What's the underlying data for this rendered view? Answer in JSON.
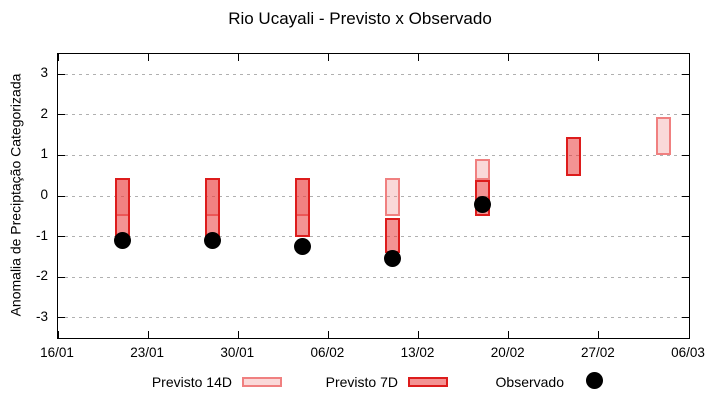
{
  "chart_data": {
    "type": "range-bar+scatter",
    "title": "Rio Ucayali - Previsto x Observado",
    "ylabel": "Anomalia de Preciptação Categorizada",
    "ylim": [
      -3.5,
      3.5
    ],
    "y_ticks": [
      3,
      2,
      1,
      0,
      -1,
      -2,
      -3
    ],
    "x_ticks": [
      "16/01",
      "23/01",
      "30/01",
      "06/02",
      "13/02",
      "20/02",
      "27/02",
      "06/03"
    ],
    "x_tick_interval_days": 7,
    "x_span_days": 49,
    "grid": "horizontal-dashed",
    "grid_color": "#b0b0b0",
    "legend_position": "bottom-outside",
    "series": [
      {
        "name": "Previsto 14D",
        "type": "range-bar",
        "fill": "rgba(240,128,128,0.30)",
        "border": "#f08080",
        "points": [
          {
            "date": "21/01",
            "day": 5,
            "low": -0.5,
            "high": 0.45
          },
          {
            "date": "28/01",
            "day": 12,
            "low": -0.5,
            "high": 0.45
          },
          {
            "date": "04/02",
            "day": 19,
            "low": -0.5,
            "high": 0.45
          },
          {
            "date": "11/02",
            "day": 26,
            "low": -0.5,
            "high": 0.45
          },
          {
            "date": "18/02",
            "day": 33,
            "low": 0.4,
            "high": 0.9
          },
          {
            "date": "04/03",
            "day": 47,
            "low": 1.0,
            "high": 1.95
          }
        ]
      },
      {
        "name": "Previsto 7D",
        "type": "range-bar",
        "fill": "rgba(232,48,48,0.52)",
        "border": "#dd1c1c",
        "points": [
          {
            "date": "21/01",
            "day": 5,
            "low": -1.0,
            "high": 0.45
          },
          {
            "date": "28/01",
            "day": 12,
            "low": -1.0,
            "high": 0.45
          },
          {
            "date": "04/02",
            "day": 19,
            "low": -1.0,
            "high": 0.45
          },
          {
            "date": "11/02",
            "day": 26,
            "low": -1.4,
            "high": -0.55
          },
          {
            "date": "18/02",
            "day": 33,
            "low": -0.5,
            "high": 0.4
          },
          {
            "date": "25/02",
            "day": 40,
            "low": 0.5,
            "high": 1.45
          }
        ]
      },
      {
        "name": "Observado",
        "type": "scatter",
        "color": "#000000",
        "points": [
          {
            "date": "21/01",
            "day": 5,
            "value": -1.1
          },
          {
            "date": "28/01",
            "day": 12,
            "value": -1.1
          },
          {
            "date": "04/02",
            "day": 19,
            "value": -1.25
          },
          {
            "date": "11/02",
            "day": 26,
            "value": -1.55
          },
          {
            "date": "18/02",
            "day": 33,
            "value": -0.2
          }
        ]
      }
    ]
  }
}
